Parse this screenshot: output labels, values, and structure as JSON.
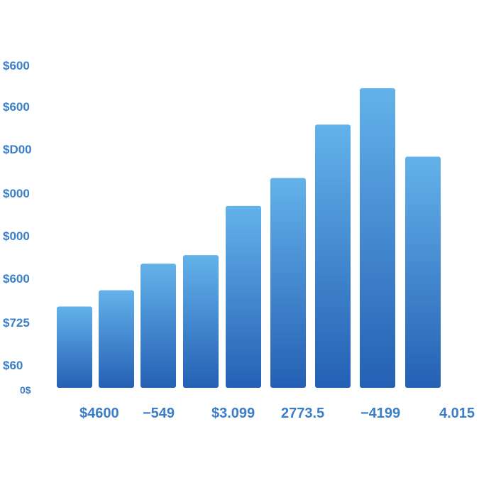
{
  "colors": {
    "bar_top": "#64b2ea",
    "bar_bottom": "#2460b4",
    "label": "#3b7ec8",
    "background": "#ffffff"
  },
  "chart_data": {
    "type": "bar",
    "title": "",
    "xlabel": "",
    "ylabel": "",
    "y_tick_labels": [
      "$600",
      "$600",
      "$D00",
      "$000",
      "$000",
      "$600",
      "$725",
      "$60",
      "0$"
    ],
    "x_tick_labels": [
      "$4600",
      "−549",
      "$3.099",
      "2773.5",
      "−4199",
      "4.015"
    ],
    "values": [
      190,
      228,
      290,
      310,
      425,
      490,
      615,
      700,
      540
    ],
    "ylim": [
      0,
      740
    ],
    "grid": false,
    "legend": "none"
  }
}
